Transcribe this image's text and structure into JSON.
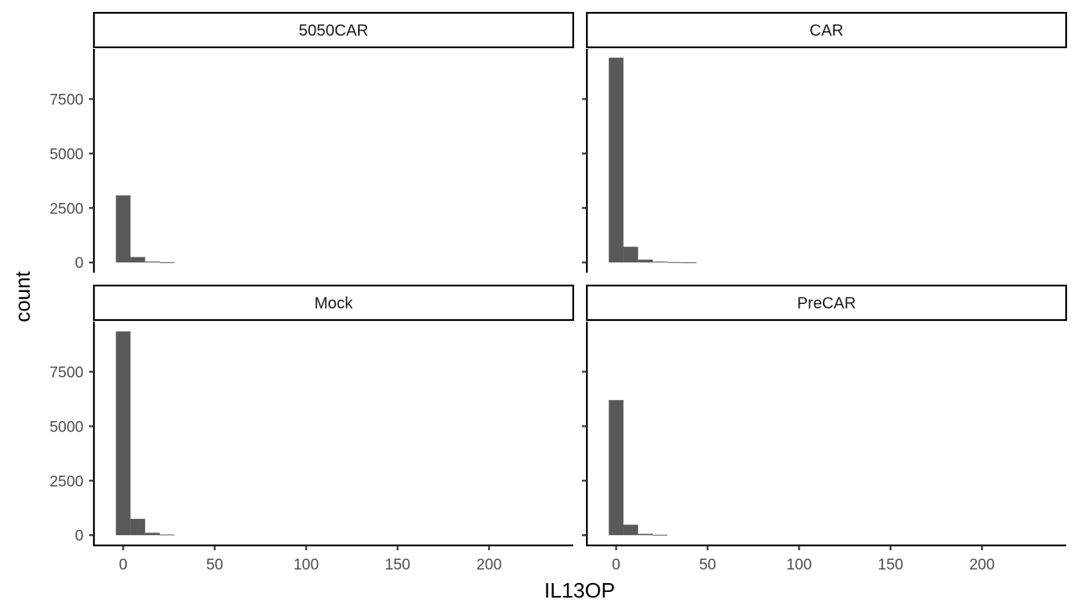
{
  "chart_data": {
    "type": "bar",
    "xlabel": "IL13OP",
    "ylabel": "count",
    "bar_color": "#595959",
    "x_ticks": [
      0,
      50,
      100,
      150,
      200
    ],
    "y_ticks": [
      0,
      2500,
      5000,
      7500
    ],
    "xlim": [
      -16,
      246
    ],
    "ylim": [
      -470,
      9800
    ],
    "bin_width": 8,
    "grid": false,
    "facets": [
      {
        "strip": "5050CAR",
        "bins": [
          {
            "x": 0,
            "count": 3080
          },
          {
            "x": 8,
            "count": 250
          },
          {
            "x": 16,
            "count": 40
          },
          {
            "x": 24,
            "count": 10
          }
        ]
      },
      {
        "strip": "CAR",
        "bins": [
          {
            "x": 0,
            "count": 9400
          },
          {
            "x": 8,
            "count": 720
          },
          {
            "x": 16,
            "count": 130
          },
          {
            "x": 24,
            "count": 40
          },
          {
            "x": 32,
            "count": 15
          },
          {
            "x": 40,
            "count": 5
          }
        ]
      },
      {
        "strip": "Mock",
        "bins": [
          {
            "x": 0,
            "count": 9350
          },
          {
            "x": 8,
            "count": 750
          },
          {
            "x": 16,
            "count": 110
          },
          {
            "x": 24,
            "count": 30
          }
        ]
      },
      {
        "strip": "PreCAR",
        "bins": [
          {
            "x": 0,
            "count": 6200
          },
          {
            "x": 8,
            "count": 480
          },
          {
            "x": 16,
            "count": 60
          },
          {
            "x": 24,
            "count": 20
          }
        ]
      }
    ]
  }
}
